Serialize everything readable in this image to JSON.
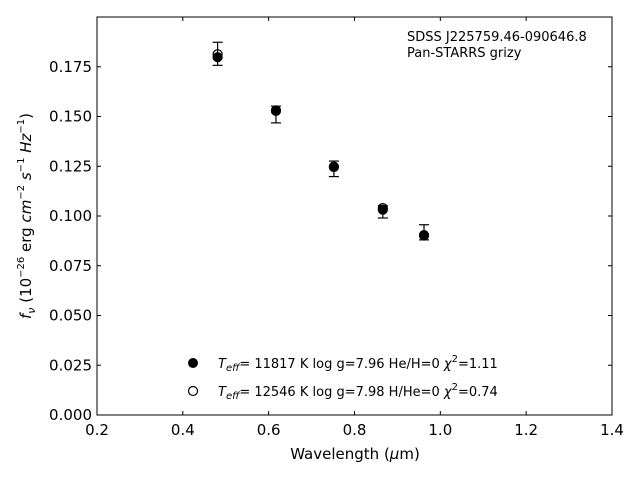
{
  "chart_data": {
    "type": "scatter",
    "annotation": [
      "SDSS J225759.46-090646.8",
      "Pan-STARRS grizy"
    ],
    "xlabel": "Wavelength (μm)",
    "ylabel": "f_ν (10^−26 erg cm^−2 s^−1 Hz^−1)",
    "xlim": [
      0.2,
      1.4
    ],
    "ylim": [
      0.0,
      0.2
    ],
    "xticks": [
      "0.2",
      "0.4",
      "0.6",
      "0.8",
      "1.0",
      "1.2",
      "1.4"
    ],
    "yticks": [
      "0.000",
      "0.025",
      "0.050",
      "0.075",
      "0.100",
      "0.125",
      "0.150",
      "0.175"
    ],
    "grid": false,
    "legend_position": "lower-center",
    "observed": {
      "x": [
        0.481,
        0.617,
        0.752,
        0.866,
        0.962
      ],
      "y": [
        0.1815,
        0.151,
        0.1237,
        0.1021,
        0.0918
      ],
      "yerr": [
        0.0058,
        0.0042,
        0.0039,
        0.0031,
        0.0038
      ]
    },
    "series": [
      {
        "name": "T_eff= 11817 K  log g=7.96  He/H=0  χ²=1.11",
        "marker": "filled-circle",
        "x": [
          0.481,
          0.617,
          0.752,
          0.866,
          0.962
        ],
        "y": [
          0.1798,
          0.1528,
          0.1248,
          0.1032,
          0.0904
        ]
      },
      {
        "name": "T_eff= 12546 K  log g=7.98  H/He=0  χ²=0.74",
        "marker": "open-circle",
        "x": [
          0.481,
          0.617,
          0.752,
          0.866,
          0.962
        ],
        "y": [
          0.1813,
          0.1531,
          0.1246,
          0.104,
          0.0902
        ]
      }
    ]
  }
}
